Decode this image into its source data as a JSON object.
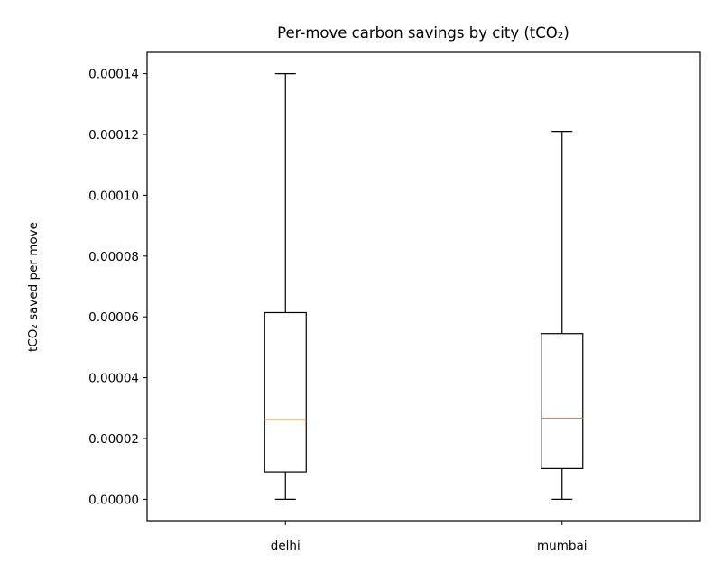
{
  "chart_data": {
    "type": "box",
    "title": "Per-move carbon savings by city (tCO₂)",
    "xlabel": "",
    "ylabel": "tCO₂ saved per move",
    "categories": [
      "delhi",
      "mumbai"
    ],
    "boxes": [
      {
        "category": "delhi",
        "whisker_low": 0.0,
        "q1": 9e-06,
        "median": 2.62e-05,
        "q3": 6.14e-05,
        "whisker_high": 0.00014
      },
      {
        "category": "mumbai",
        "whisker_low": 0.0,
        "q1": 1.01e-05,
        "median": 2.67e-05,
        "q3": 5.45e-05,
        "whisker_high": 0.000121
      }
    ],
    "yticks": [
      0,
      2e-05,
      4e-05,
      6e-05,
      8e-05,
      0.0001,
      0.00012,
      0.00014
    ],
    "ytick_labels": [
      "0.00000",
      "0.00002",
      "0.00004",
      "0.00006",
      "0.00008",
      "0.00010",
      "0.00012",
      "0.00014"
    ],
    "ylim": [
      -7e-06,
      0.000147
    ],
    "grid": false,
    "colors": {
      "box": "#000000",
      "median": "#ff7f0e"
    }
  }
}
